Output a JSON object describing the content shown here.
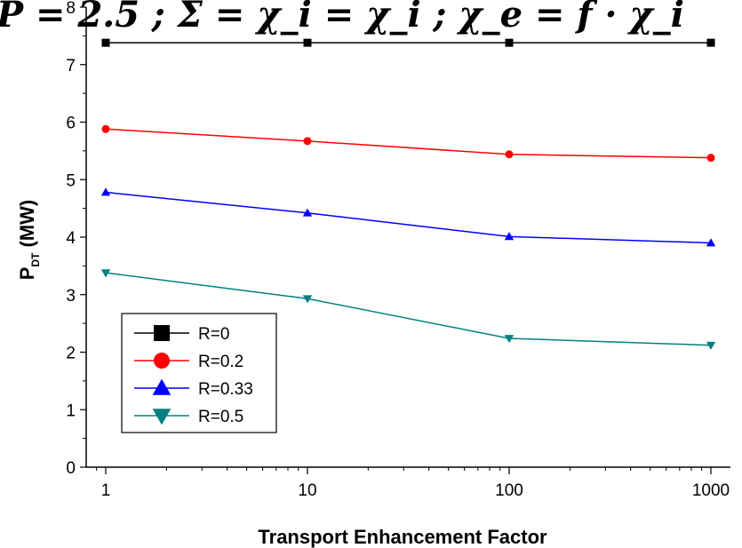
{
  "chart_data": {
    "type": "line",
    "title_fragment": "P = 2.5 ; Σ = χ_i = χ_i ; χ_e = f · χ_i",
    "xlabel": "Transport Enhancement Factor",
    "ylabel_main": "P",
    "ylabel_sub": "DT",
    "ylabel_unit": "(MW)",
    "x_scale": "log",
    "xlim": [
      0.8,
      1250
    ],
    "ylim": [
      0,
      8
    ],
    "x_ticks": [
      1,
      10,
      100,
      1000
    ],
    "x_tick_labels": [
      "1",
      "10",
      "100",
      "1000"
    ],
    "y_ticks": [
      0,
      1,
      2,
      3,
      4,
      5,
      6,
      7,
      8
    ],
    "y_tick_labels": [
      "0",
      "1",
      "2",
      "3",
      "4",
      "5",
      "6",
      "7",
      "8"
    ],
    "grid": false,
    "legend_position": "bottom-left",
    "x": [
      1,
      10,
      100,
      1000
    ],
    "series": [
      {
        "name": "R=0",
        "values": [
          7.38,
          7.38,
          7.38,
          7.38
        ],
        "color": "#000000",
        "marker": "square"
      },
      {
        "name": "R=0.2",
        "values": [
          5.88,
          5.67,
          5.44,
          5.38
        ],
        "color": "#ff0000",
        "marker": "circle"
      },
      {
        "name": "R=0.33",
        "values": [
          4.78,
          4.42,
          4.01,
          3.9
        ],
        "color": "#0000ff",
        "marker": "triangle-up"
      },
      {
        "name": "R=0.5",
        "values": [
          3.38,
          2.93,
          2.24,
          2.12
        ],
        "color": "#008080",
        "marker": "triangle-down"
      }
    ]
  }
}
